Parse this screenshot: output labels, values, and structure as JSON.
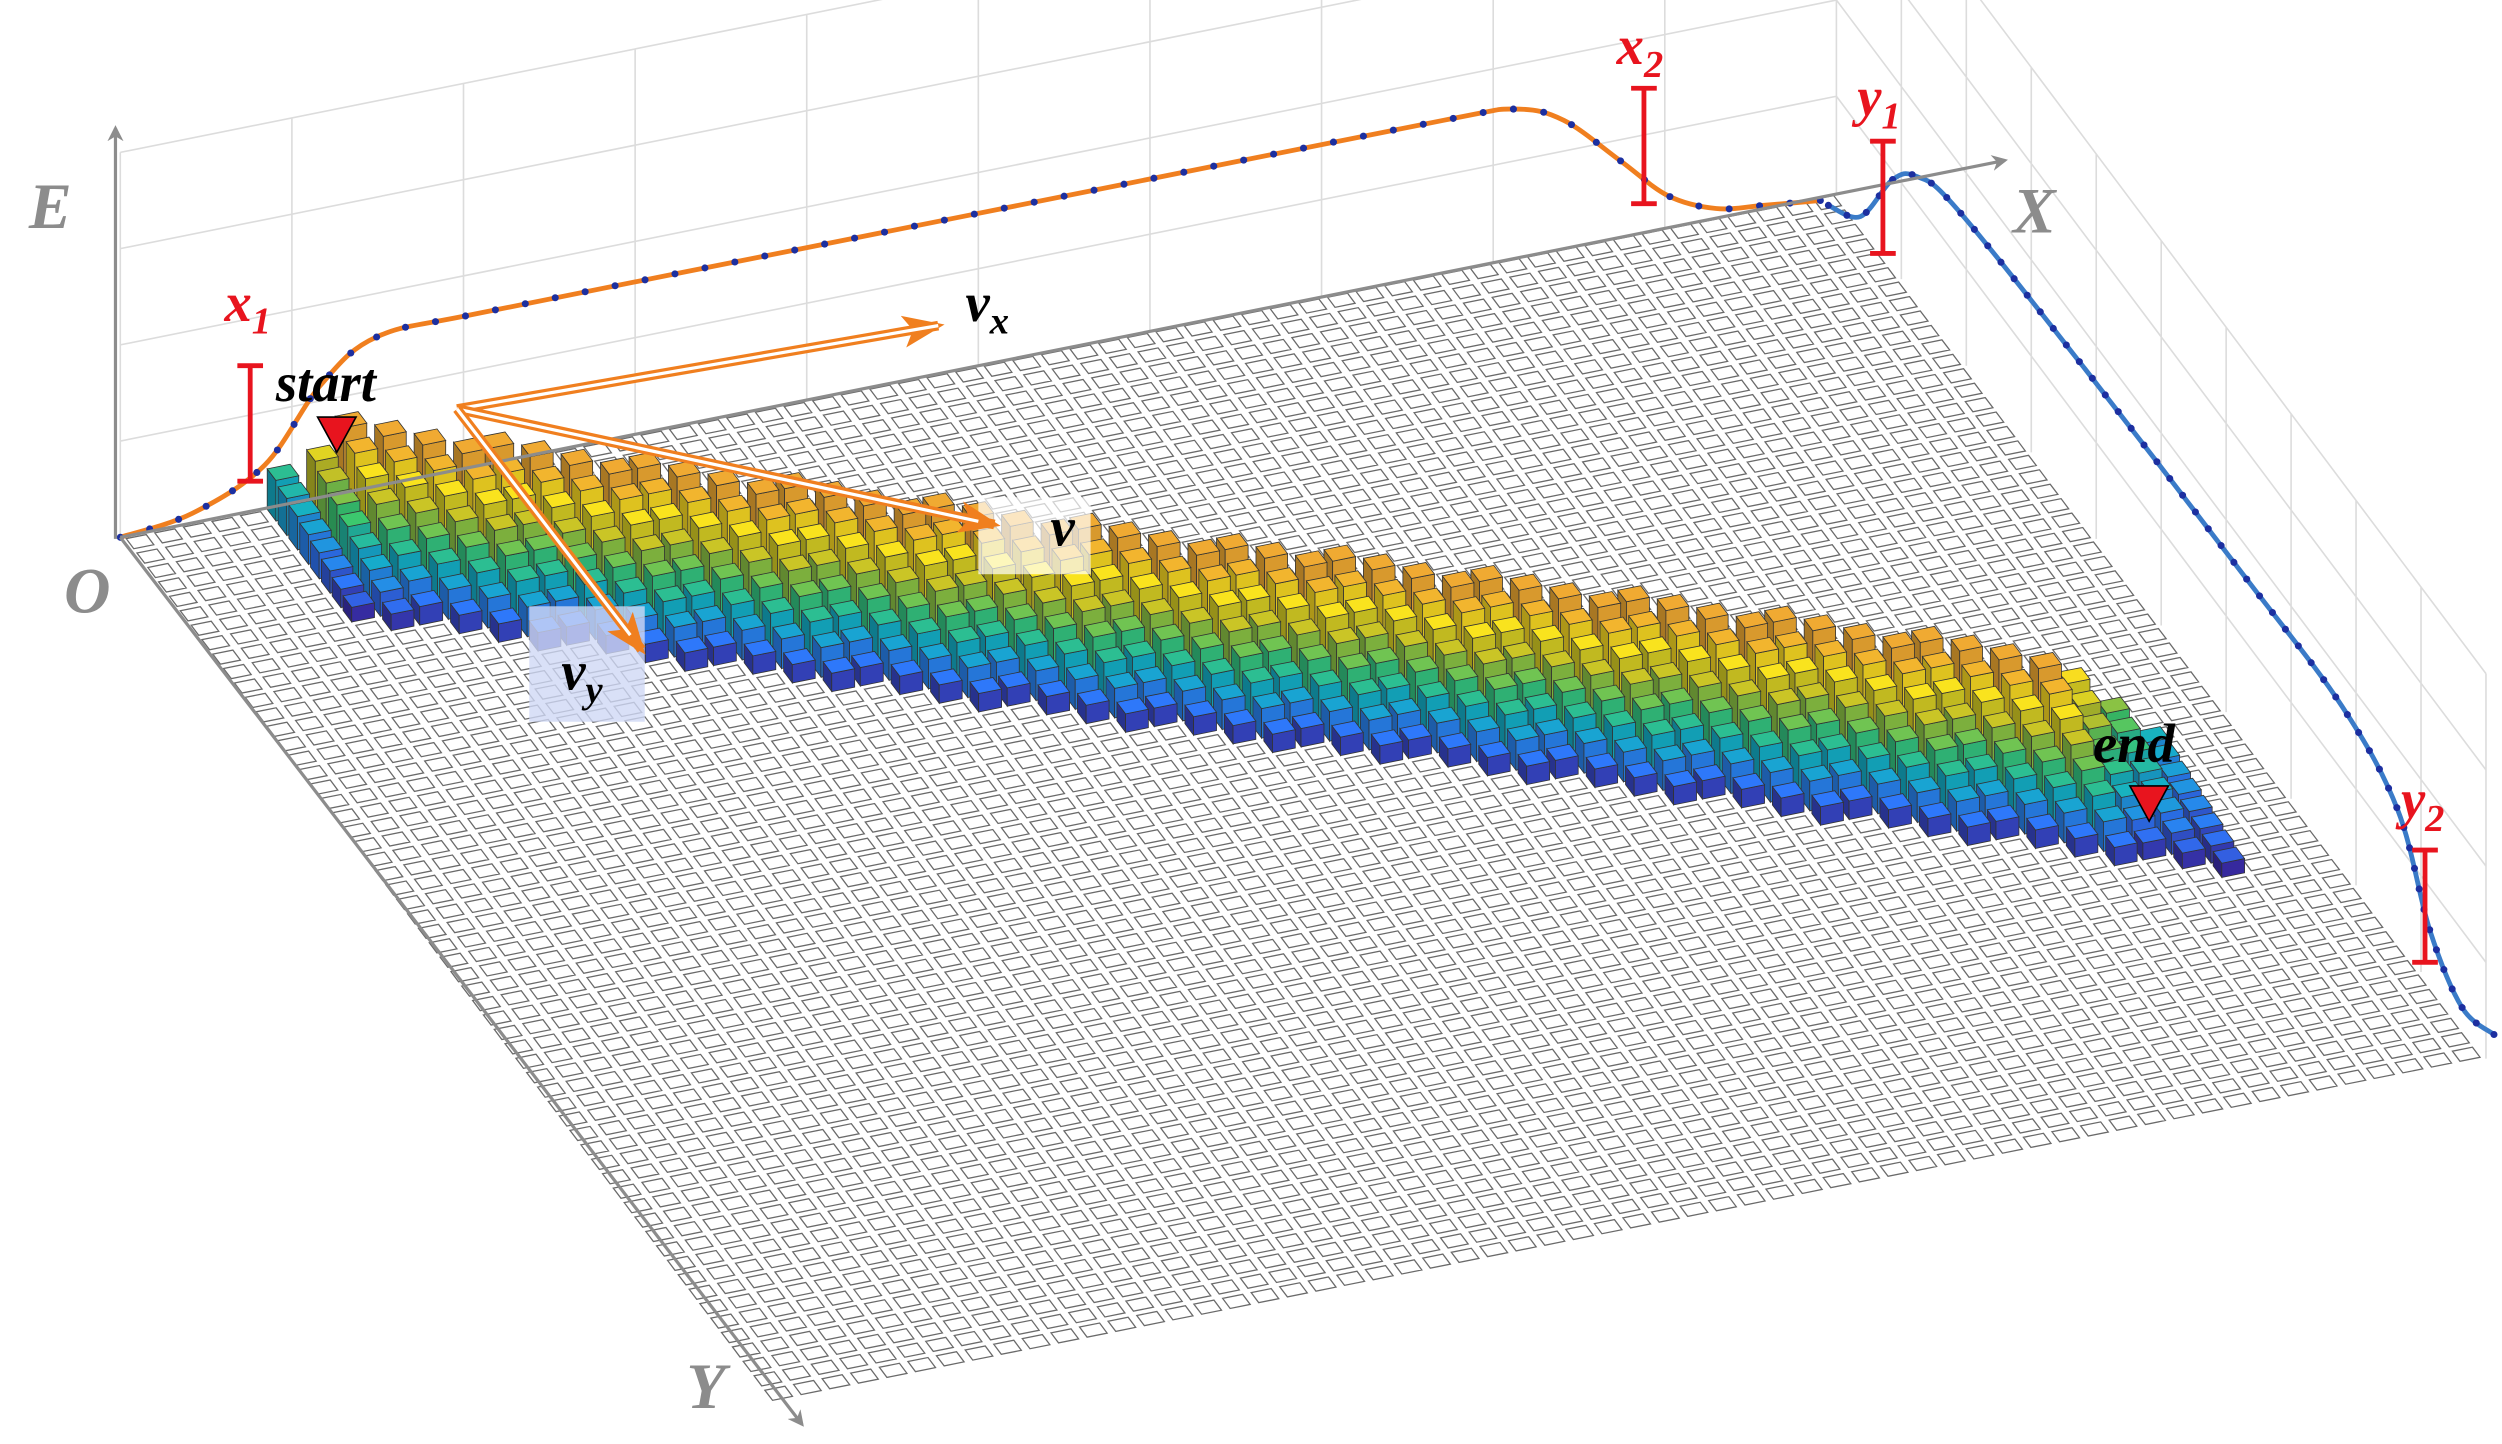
{
  "axes": {
    "energy": "E",
    "origin": "O",
    "x": "X",
    "y": "Y"
  },
  "markers": {
    "x1": {
      "base": "x",
      "sub": "1"
    },
    "x2": {
      "base": "x",
      "sub": "2"
    },
    "y1": {
      "base": "y",
      "sub": "1"
    },
    "y2": {
      "base": "y",
      "sub": "2"
    }
  },
  "labels": {
    "start": "start",
    "end": "end"
  },
  "vectors": {
    "v": "v",
    "vx": {
      "base": "v",
      "sub": "x"
    },
    "vy": {
      "base": "v",
      "sub": "y"
    }
  }
}
